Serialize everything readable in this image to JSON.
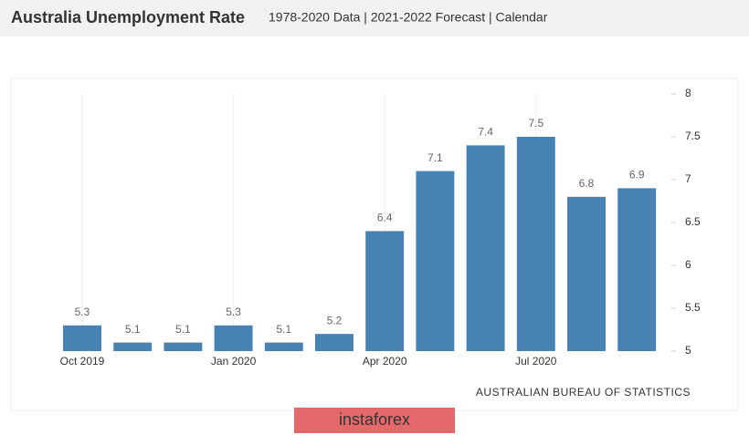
{
  "chart_data": {
    "type": "bar",
    "title": "Australia Unemployment Rate",
    "subtitle": "1978-2020 Data | 2021-2022 Forecast | Calendar",
    "categories": [
      "Oct 2019",
      null,
      null,
      "Jan 2020",
      null,
      null,
      "Apr 2020",
      null,
      null,
      "Jul 2020",
      null,
      null
    ],
    "values": [
      5.3,
      5.1,
      5.1,
      5.3,
      5.1,
      5.2,
      6.4,
      7.1,
      7.4,
      7.5,
      6.8,
      6.9
    ],
    "color": "#4682b4",
    "ylim": [
      5,
      8
    ],
    "yticks": [
      5,
      5.5,
      6,
      6.5,
      7,
      7.5,
      8
    ],
    "grid": "x",
    "source": "AUSTRALIAN BUREAU OF STATISTICS",
    "watermark": "instaforex"
  }
}
